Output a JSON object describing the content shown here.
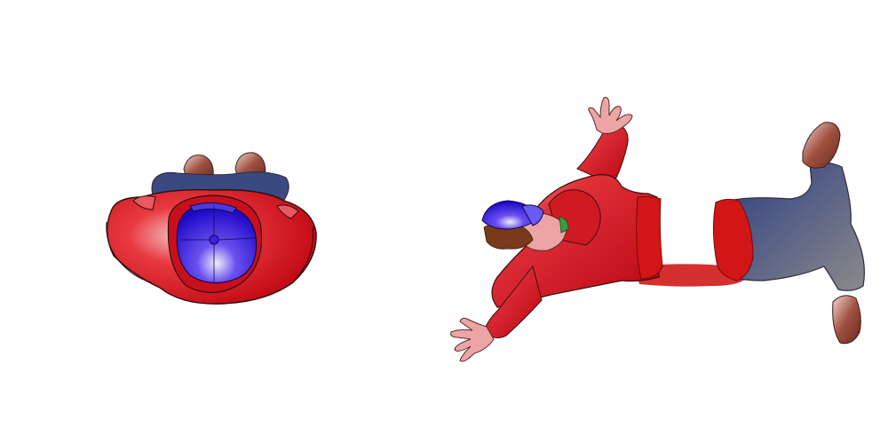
{
  "scene": {
    "description_free": true,
    "figures": [
      {
        "id": "figure-standing",
        "colors": {
          "hoodie": "#d0101a",
          "cap": "#2a10d8",
          "shorts": "#3a4a80",
          "shoes": "#7a3a2a"
        }
      },
      {
        "id": "figure-sprawled",
        "colors": {
          "hoodie": "#c8101c",
          "cap": "#3010d0",
          "pants": "#404a80",
          "shoes": "#8a4a3a",
          "skin": "#e8a0a0",
          "hair": "#7a3a1a",
          "blood": "#d01010"
        }
      }
    ]
  }
}
